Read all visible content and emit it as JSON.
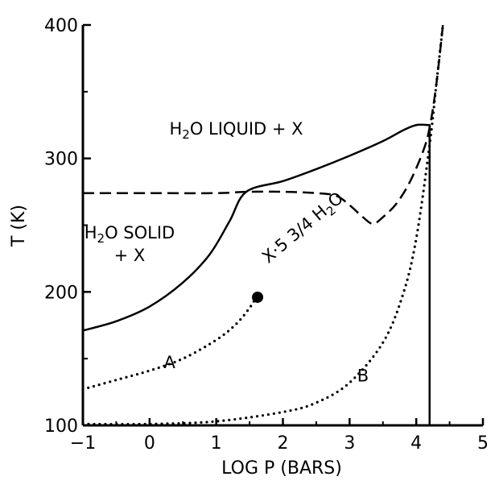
{
  "chart_data": {
    "type": "line",
    "title": "",
    "xlabel": "LOG P (BARS)",
    "ylabel": "T (K)",
    "xlim": [
      -1,
      5
    ],
    "ylim": [
      100,
      400
    ],
    "xticks": [
      -1,
      0,
      1,
      2,
      3,
      4,
      5
    ],
    "yticks": [
      100,
      200,
      300,
      400
    ],
    "grid": false,
    "legend": "none",
    "series": [
      {
        "style": "solid",
        "x": [
          -1.0,
          -0.5,
          0.0,
          0.5,
          0.9,
          1.2,
          1.45,
          2.0,
          2.5,
          3.0,
          3.5,
          3.8,
          4.0,
          4.2
        ],
        "y": [
          171,
          178,
          189,
          207,
          228,
          253,
          275,
          283,
          292,
          302,
          313,
          321,
          325,
          325
        ]
      },
      {
        "style": "dashed",
        "x": [
          -1.0,
          0.0,
          1.0,
          1.45,
          2.0,
          2.5,
          2.8,
          3.0,
          3.2,
          3.35,
          3.5,
          3.7,
          3.9,
          4.1,
          4.2,
          4.3,
          4.4
        ],
        "y": [
          274,
          274,
          274,
          275,
          275,
          274,
          272,
          265,
          256,
          251,
          256,
          266,
          282,
          305,
          323,
          355,
          400
        ]
      },
      {
        "style": "solid",
        "x": [
          4.2,
          4.2
        ],
        "y": [
          100,
          325
        ]
      },
      {
        "name": "A",
        "style": "dotted",
        "x": [
          -1.0,
          -0.5,
          0.0,
          0.5,
          1.0,
          1.3,
          1.5,
          1.6
        ],
        "y": [
          127,
          134,
          141,
          150,
          164,
          176,
          188,
          196
        ]
      },
      {
        "name": "B",
        "style": "dotted",
        "x": [
          -1.0,
          0.0,
          1.0,
          2.0,
          2.5,
          3.0,
          3.5,
          3.8,
          4.0,
          4.2,
          4.3,
          4.4
        ],
        "y": [
          101,
          101,
          103,
          110,
          117,
          132,
          162,
          198,
          240,
          310,
          355,
          400
        ]
      }
    ],
    "points": [
      {
        "x": 1.62,
        "y": 196
      }
    ],
    "annotations": [
      {
        "lines": [
          "H2O LIQUID + X"
        ],
        "x": 1.3,
        "y": 318
      },
      {
        "lines": [
          "H2O SOLID",
          "+ X"
        ],
        "x": -0.3,
        "y": 240
      },
      {
        "lines": [
          "X·5 3/4 H2O"
        ],
        "x": 2.35,
        "y": 245,
        "rotate": -40
      },
      {
        "lines": [
          "A"
        ],
        "x": 0.3,
        "y": 143
      },
      {
        "lines": [
          "B"
        ],
        "x": 3.2,
        "y": 133
      }
    ]
  }
}
